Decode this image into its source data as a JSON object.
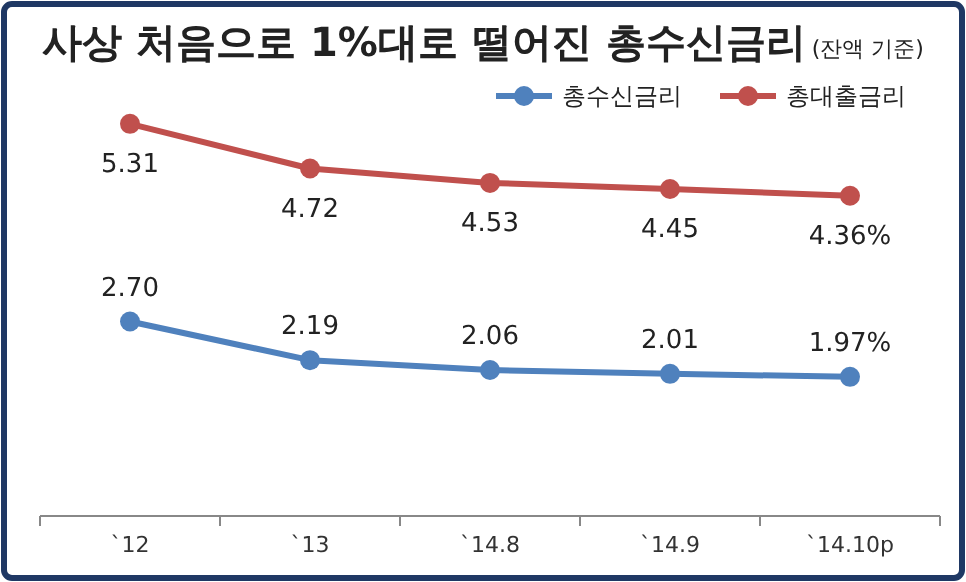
{
  "chart_data": {
    "type": "line",
    "title": "사상 처음으로 1%대로 떨어진 총수신금리",
    "subtitle": "(잔액 기준)",
    "categories": [
      "`12",
      "`13",
      "`14.8",
      "`14.9",
      "`14.10p"
    ],
    "series": [
      {
        "name": "총수신금리",
        "color": "#4f81bd",
        "values": [
          2.7,
          2.19,
          2.06,
          2.01,
          1.97
        ],
        "value_labels": [
          "2.70",
          "2.19",
          "2.06",
          "2.01",
          "1.97%"
        ]
      },
      {
        "name": "총대출금리",
        "color": "#c0504d",
        "values": [
          5.31,
          4.72,
          4.53,
          4.45,
          4.36
        ],
        "value_labels": [
          "5.31",
          "4.72",
          "4.53",
          "4.45",
          "4.36%"
        ]
      }
    ],
    "marker": "circle",
    "legend": "top right"
  }
}
